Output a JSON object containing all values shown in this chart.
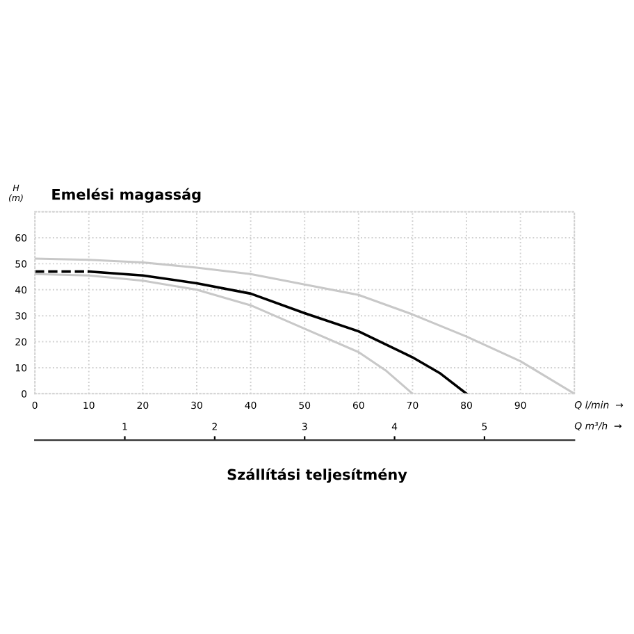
{
  "chart_data": {
    "type": "line",
    "title": "Emelési magasság",
    "ylabel": "H\n(m)",
    "xlabel": "Q l/min  →",
    "x2label": "Q m³/h  →",
    "annotations": [
      "Szállítási teljesítmény"
    ],
    "xlim": [
      0,
      100
    ],
    "xticks": [
      0,
      10,
      20,
      30,
      40,
      50,
      60,
      70,
      80,
      90
    ],
    "x2lim": [
      0,
      6
    ],
    "x2ticks": [
      1,
      2,
      3,
      4,
      5
    ],
    "ylim": [
      0,
      70
    ],
    "yticks": [
      0,
      10,
      20,
      30,
      40,
      50,
      60,
      {
        "value": 70,
        "label": null
      }
    ],
    "grid": true,
    "legend": false,
    "marker": "none",
    "series": [
      {
        "color": "#c8c8c8",
        "line_style": "solid",
        "x": [
          0,
          10,
          20,
          30,
          40,
          50,
          60,
          70,
          80,
          90,
          100
        ],
        "values": [
          52,
          51.5,
          50.5,
          48.5,
          46,
          42,
          38,
          30.5,
          22,
          12.5,
          0
        ]
      },
      {
        "color": "#c8c8c8",
        "line_style": "solid",
        "x": [
          0,
          10,
          20,
          30,
          40,
          50,
          60,
          65,
          70
        ],
        "values": [
          46,
          45.5,
          43.5,
          40,
          34,
          25,
          16,
          9,
          0
        ]
      },
      {
        "color": "#000000",
        "line_style": "dashed",
        "x": [
          0,
          10
        ],
        "values": [
          47,
          47
        ]
      },
      {
        "color": "#000000",
        "line_style": "solid",
        "x": [
          10,
          20,
          30,
          40,
          50,
          60,
          70,
          75,
          80
        ],
        "values": [
          47,
          45.5,
          42.5,
          38.5,
          31,
          24,
          14,
          8,
          0
        ]
      }
    ]
  }
}
